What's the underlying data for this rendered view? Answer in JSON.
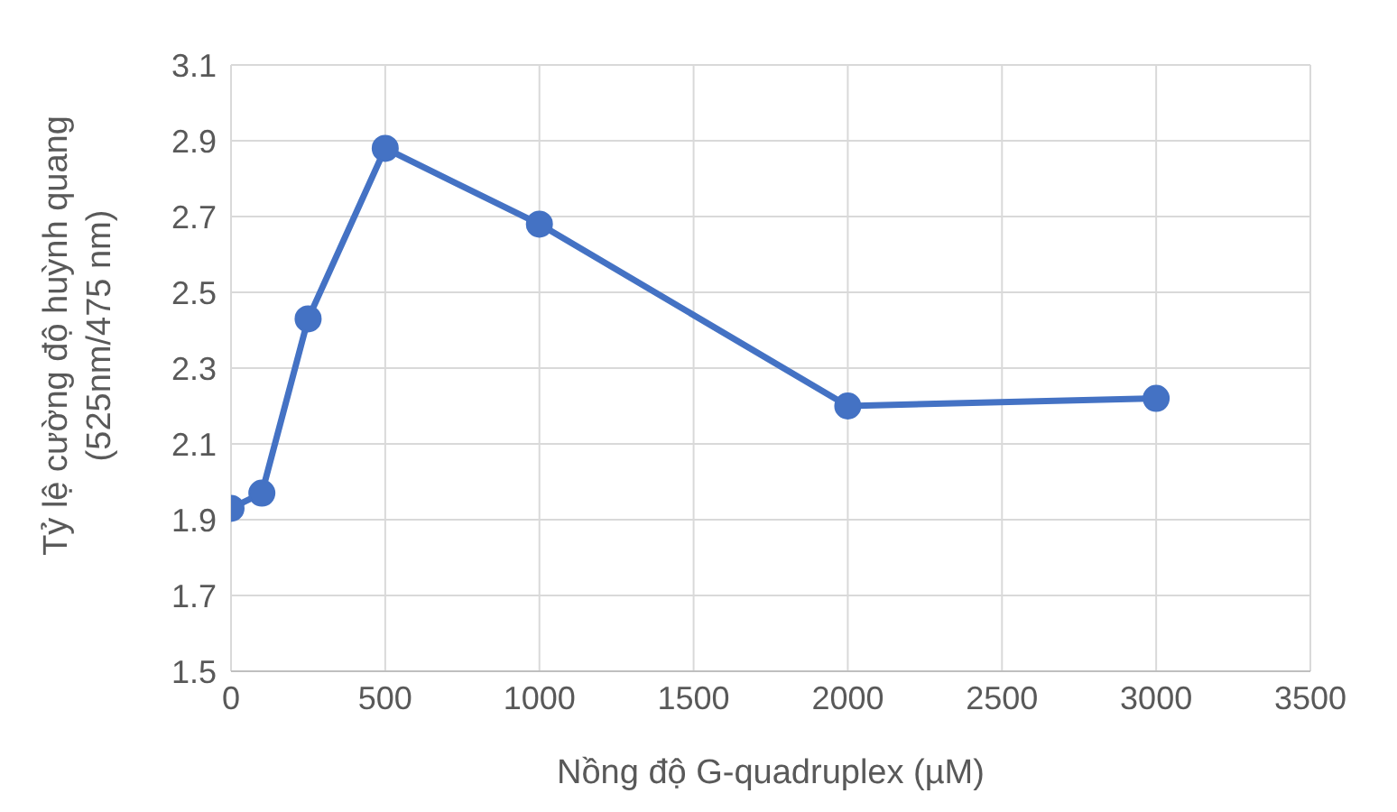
{
  "chart_data": {
    "type": "line",
    "xlabel": "Nồng độ G-quadruplex (µM)",
    "ylabel": "Tỷ lệ cường độ huỳnh quang (525nm/475 nm)",
    "x": [
      0,
      100,
      250,
      500,
      1000,
      2000,
      3000
    ],
    "series": [
      {
        "color": "#4472c4",
        "values": [
          1.93,
          1.97,
          2.43,
          2.88,
          2.68,
          2.2,
          2.22
        ]
      }
    ],
    "xlim": [
      0,
      3500
    ],
    "xticks": [
      0,
      500,
      1000,
      1500,
      2000,
      2500,
      3000,
      3500
    ],
    "ylim": [
      1.5,
      3.1
    ],
    "yticks": [
      1.5,
      1.7,
      1.9,
      2.1,
      2.3,
      2.5,
      2.7,
      2.9,
      3.1
    ],
    "grid": true,
    "marker": "circle",
    "line_style": "solid",
    "legend": false
  }
}
